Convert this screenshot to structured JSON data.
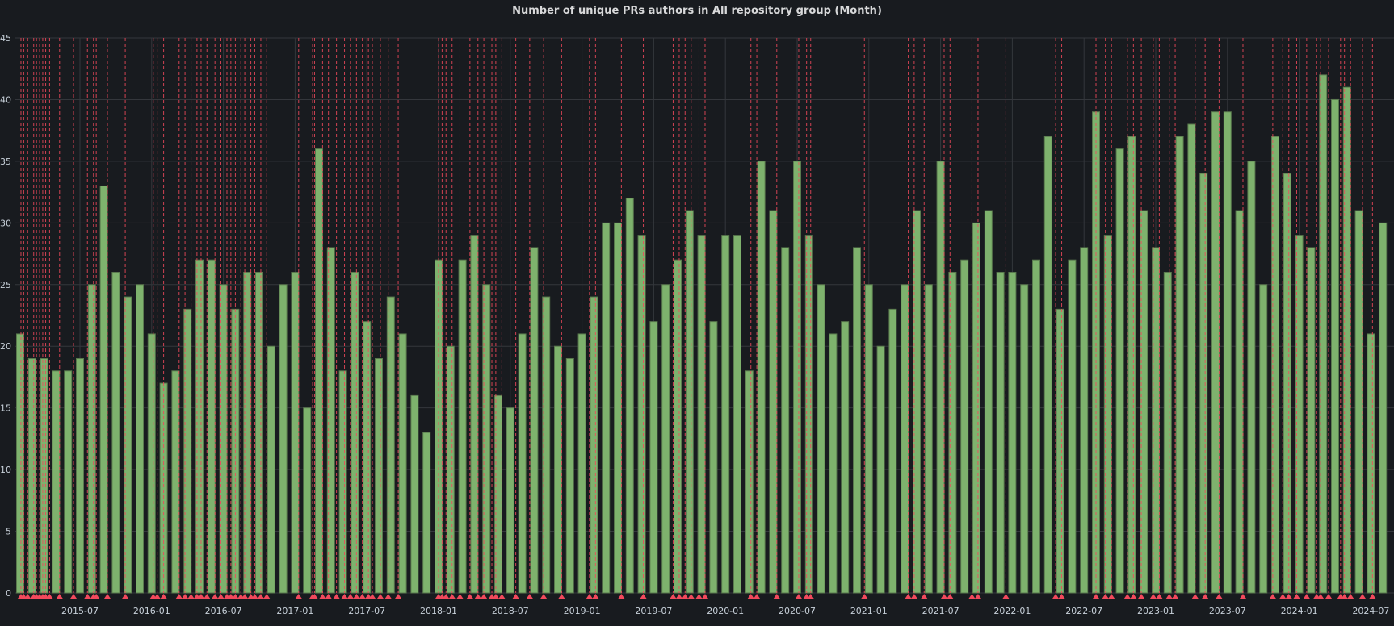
{
  "panel": {
    "title": "Number of unique PRs authors in All repository group (Month)"
  },
  "chart_data": {
    "type": "bar",
    "title": "Number of unique PRs authors in All repository group (Month)",
    "xlabel": "",
    "ylabel": "",
    "start_month": "2015-02",
    "end_month": "2024-08",
    "values": [
      21,
      19,
      19,
      18,
      18,
      19,
      25,
      33,
      26,
      24,
      25,
      21,
      17,
      18,
      23,
      27,
      27,
      25,
      23,
      26,
      26,
      20,
      25,
      26,
      15,
      36,
      28,
      18,
      26,
      22,
      19,
      24,
      21,
      16,
      13,
      27,
      20,
      27,
      29,
      25,
      16,
      15,
      21,
      28,
      24,
      20,
      19,
      21,
      24,
      30,
      30,
      32,
      29,
      22,
      25,
      27,
      31,
      29,
      22,
      29,
      29,
      18,
      35,
      31,
      28,
      35,
      29,
      25,
      21,
      22,
      28,
      25,
      20,
      23,
      25,
      31,
      25,
      35,
      26,
      27,
      30,
      31,
      26,
      26,
      25,
      27,
      37,
      23,
      27,
      28,
      39,
      29,
      36,
      37,
      31,
      28,
      26,
      37,
      38,
      34,
      39,
      39,
      31,
      35,
      25,
      37,
      34,
      29,
      28,
      42,
      40,
      41,
      31,
      21,
      30
    ],
    "ylim": [
      0,
      45
    ],
    "yticks": [
      "0",
      "5",
      "10",
      "15",
      "20",
      "25",
      "30",
      "35",
      "40",
      "45"
    ],
    "xticks": [
      "2015-07",
      "2016-01",
      "2016-07",
      "2017-01",
      "2017-07",
      "2018-01",
      "2018-07",
      "2019-01",
      "2019-07",
      "2020-01",
      "2020-07",
      "2021-01",
      "2021-07",
      "2022-01",
      "2022-07",
      "2023-01",
      "2023-07",
      "2024-01",
      "2024-07"
    ],
    "grid": true,
    "legend": "none",
    "colors": {
      "bar": "#7eb26d",
      "bar_stroke": "#5a7a4e",
      "annotation": "#f2495c",
      "background": "#181b1f",
      "grid": "#34373c"
    },
    "annotations": [
      "2015-02-03",
      "2015-02-10",
      "2015-02-20",
      "2015-03-05",
      "2015-03-12",
      "2015-03-20",
      "2015-03-28",
      "2015-04-05",
      "2015-04-15",
      "2015-05-10",
      "2015-06-15",
      "2015-07-20",
      "2015-08-05",
      "2015-08-12",
      "2015-09-10",
      "2015-10-25",
      "2016-01-05",
      "2016-01-15",
      "2016-02-01",
      "2016-03-10",
      "2016-03-25",
      "2016-04-10",
      "2016-04-25",
      "2016-05-05",
      "2016-05-20",
      "2016-06-10",
      "2016-06-25",
      "2016-07-10",
      "2016-07-20",
      "2016-08-01",
      "2016-08-15",
      "2016-08-25",
      "2016-09-10",
      "2016-09-20",
      "2016-10-05",
      "2016-10-20",
      "2017-01-10",
      "2017-02-15",
      "2017-02-20",
      "2017-03-10",
      "2017-03-25",
      "2017-04-15",
      "2017-05-05",
      "2017-05-20",
      "2017-06-05",
      "2017-06-20",
      "2017-07-05",
      "2017-07-15",
      "2017-08-05",
      "2017-08-25",
      "2017-09-20",
      "2018-01-01",
      "2018-01-10",
      "2018-01-20",
      "2018-02-05",
      "2018-02-25",
      "2018-03-20",
      "2018-04-10",
      "2018-04-25",
      "2018-05-15",
      "2018-05-25",
      "2018-06-10",
      "2018-07-15",
      "2018-08-20",
      "2018-09-25",
      "2018-11-10",
      "2019-01-20",
      "2019-02-05",
      "2019-04-10",
      "2019-06-05",
      "2019-08-20",
      "2019-09-05",
      "2019-09-20",
      "2019-10-05",
      "2019-10-25",
      "2019-11-10",
      "2020-03-05",
      "2020-03-20",
      "2020-05-10",
      "2020-07-05",
      "2020-07-25",
      "2020-08-05",
      "2020-12-20",
      "2021-04-10",
      "2021-04-25",
      "2021-05-20",
      "2021-07-10",
      "2021-07-25",
      "2021-09-20",
      "2021-10-05",
      "2021-12-15",
      "2022-04-20",
      "2022-05-05",
      "2022-08-01",
      "2022-08-25",
      "2022-09-10",
      "2022-10-20",
      "2022-11-05",
      "2022-11-25",
      "2022-12-25",
      "2023-01-10",
      "2023-02-05",
      "2023-02-20",
      "2023-04-10",
      "2023-05-05",
      "2023-06-10",
      "2023-08-10",
      "2023-10-25",
      "2023-11-20",
      "2023-12-05",
      "2023-12-25",
      "2024-01-20",
      "2024-02-15",
      "2024-02-25",
      "2024-03-15",
      "2024-04-15",
      "2024-04-25",
      "2024-05-10",
      "2024-06-10",
      "2024-07-05"
    ]
  }
}
